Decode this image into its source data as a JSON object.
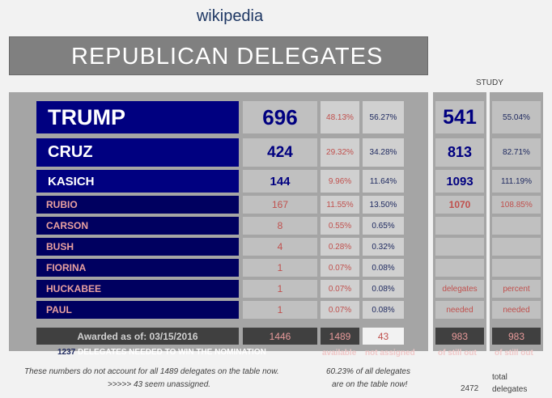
{
  "site": "wikipedia",
  "title": "REPUBLICAN DELEGATES",
  "study_label": "STUDY",
  "candidates": [
    {
      "name": "TRUMP",
      "delegates": "696",
      "pct1": "48.13%",
      "pct2": "56.27%",
      "needed": "541",
      "needed_pct": "55.04%"
    },
    {
      "name": "CRUZ",
      "delegates": "424",
      "pct1": "29.32%",
      "pct2": "34.28%",
      "needed": "813",
      "needed_pct": "82.71%"
    },
    {
      "name": "KASICH",
      "delegates": "144",
      "pct1": "9.96%",
      "pct2": "11.64%",
      "needed": "1093",
      "needed_pct": "111.19%"
    },
    {
      "name": "RUBIO",
      "delegates": "167",
      "pct1": "11.55%",
      "pct2": "13.50%",
      "needed": "1070",
      "needed_pct": "108.85%"
    },
    {
      "name": "CARSON",
      "delegates": "8",
      "pct1": "0.55%",
      "pct2": "0.65%"
    },
    {
      "name": "BUSH",
      "delegates": "4",
      "pct1": "0.28%",
      "pct2": "0.32%"
    },
    {
      "name": "FIORINA",
      "delegates": "1",
      "pct1": "0.07%",
      "pct2": "0.08%"
    },
    {
      "name": "HUCKABEE",
      "delegates": "1",
      "pct1": "0.07%",
      "pct2": "0.08%"
    },
    {
      "name": "PAUL",
      "delegates": "1",
      "pct1": "0.07%",
      "pct2": "0.08%"
    }
  ],
  "study_notes": {
    "col1_a": "delegates",
    "col1_b": "needed",
    "col2_a": "percent",
    "col2_b": "needed"
  },
  "footer": {
    "awarded_label": "Awarded as of: 03/15/2016",
    "awarded_total": "1446",
    "available_total": "1489",
    "not_assigned_total": "43",
    "study_total1": "983",
    "study_total2": "983",
    "needed_number": "1237",
    "needed_text": "DELEGATES NEEDED TO WIN THE NOMINATION",
    "available_label": "available",
    "not_assigned_label": "not assigned",
    "still_out1": "of still out",
    "still_out2": "of still out"
  },
  "notes": {
    "left1": "These numbers do not account for all 1489 delegates on the table now.",
    "left2": ">>>>>  43 seem unassigned.",
    "mid1": "60.23% of all delegates",
    "mid2": "are on the table now!",
    "total_number": "2472",
    "total_label1": "total",
    "total_label2": "delegates"
  },
  "colors": {
    "navy": "#000080",
    "red_text": "#c0504d",
    "dark_blue_text": "#1f2a60"
  }
}
